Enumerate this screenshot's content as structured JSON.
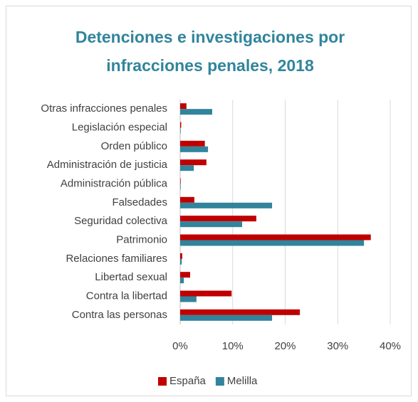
{
  "chart_data": {
    "type": "hbar",
    "title": "Detenciones e investigaciones por infracciones penales, 2018",
    "categories": [
      "Otras infracciones penales",
      "Legislación especial",
      "Orden público",
      "Administración de justicia",
      "Administración pública",
      "Falsedades",
      "Seguridad colectiva",
      "Patrimonio",
      "Relaciones familiares",
      "Libertad sexual",
      "Contra la libertad",
      "Contra las personas"
    ],
    "series": [
      {
        "name": "España",
        "color": "#c00000",
        "values": [
          1.2,
          0.2,
          4.7,
          5.0,
          0.1,
          2.7,
          14.5,
          36.3,
          0.4,
          1.9,
          9.8,
          22.8
        ]
      },
      {
        "name": "Melilla",
        "color": "#31849b",
        "values": [
          6.1,
          0.1,
          5.3,
          2.6,
          0.1,
          17.5,
          11.8,
          35.0,
          0.3,
          0.7,
          3.1,
          17.5
        ]
      }
    ],
    "xlim": [
      0,
      40
    ],
    "xticks": [
      {
        "value": 0,
        "label": "0%"
      },
      {
        "value": 10,
        "label": "10%"
      },
      {
        "value": 20,
        "label": "20%"
      },
      {
        "value": 30,
        "label": "30%"
      },
      {
        "value": 40,
        "label": "40%"
      }
    ],
    "grid": true,
    "legend": "bottom"
  }
}
